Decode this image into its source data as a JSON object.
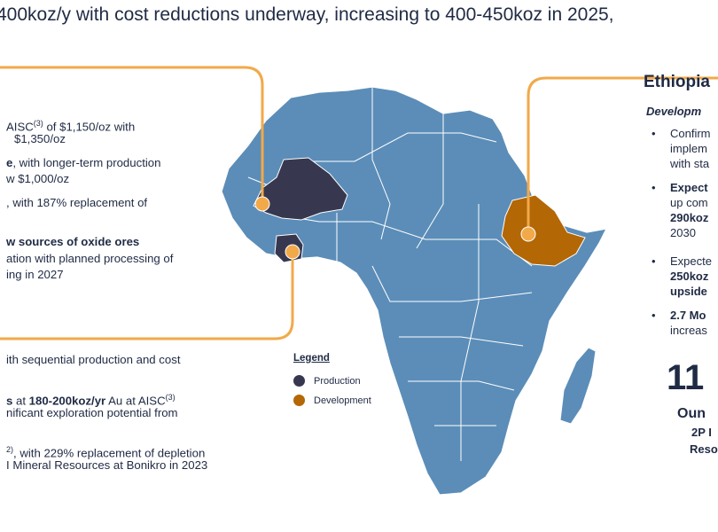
{
  "headline": "400koz/y with cost reductions underway, increasing to 400-450koz in 2025,",
  "left_panel": {
    "l1a": "AISC",
    "l1sup": "(3)",
    "l1b": " of $1,150/oz with",
    "l2": "$1,350/oz",
    "l3b": "e",
    "l3": ", with longer-term production",
    "l4": "w $1,000/oz",
    "l5": ", with 187% replacement of",
    "l6b": "w sources of oxide ores",
    "l7": "ation with planned processing of",
    "l8": "ing in 2027"
  },
  "lower_panel": {
    "l1": "ith sequential production and cost",
    "l2a": "s",
    "l2mid": " at ",
    "l2b": "180-200koz/yr",
    "l2c": " Au at AISC",
    "l2sup": "(3)",
    "l3": "nificant exploration potential from",
    "l4sup": "2)",
    "l4": ", with 229% replacement of depletion",
    "l5": "I Mineral Resources at Bonikro in 2023"
  },
  "legend": {
    "title": "Legend",
    "items": [
      {
        "label": "Production",
        "color": "#373850"
      },
      {
        "label": "Development",
        "color": "#b36705"
      }
    ]
  },
  "ethiopia": {
    "title": "Ethiopia",
    "subtitle": "Developm",
    "b1": [
      "Confirm",
      "implem",
      "with sta"
    ],
    "b2": [
      "Expect",
      "up com",
      "290koz",
      "2030"
    ],
    "b3": [
      "Expecte",
      "250koz",
      "upside"
    ],
    "b4": [
      "2.7 Mo",
      "increas"
    ],
    "big_number": "11",
    "ounces": "Oun",
    "p2": "2P I",
    "reso": "Reso"
  },
  "colors": {
    "map_fill": "#5b8db8",
    "map_border": "#ffffff",
    "production": "#373850",
    "development": "#b36705",
    "connector": "#f2a94a",
    "text": "#1f2a44"
  }
}
